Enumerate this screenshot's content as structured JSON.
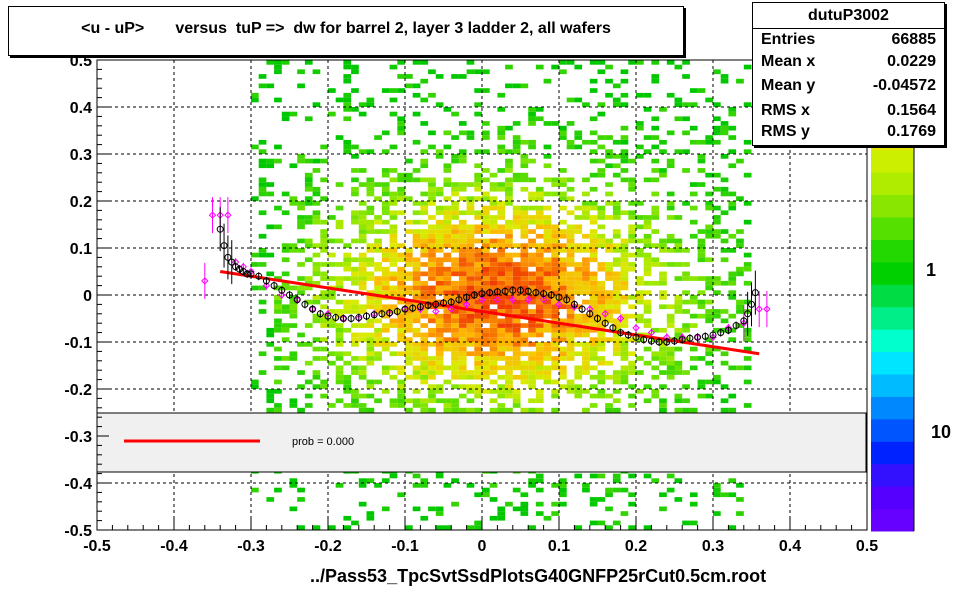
{
  "title": "<u - uP>       versus  tuP =>  dw for barrel 2, layer 3 ladder 2, all wafers",
  "footer": "../Pass53_TpcSvtSsdPlotsG40GNFP25rCut0.5cm.root",
  "stats": {
    "name": "dutuP3002",
    "rows": [
      {
        "label": "Entries",
        "value": "66885"
      },
      {
        "label": "Mean x",
        "value": "0.0229"
      },
      {
        "label": "Mean y",
        "value": "-0.04572"
      },
      {
        "label": "RMS x",
        "value": "0.1564"
      },
      {
        "label": "RMS y",
        "value": "0.1769"
      }
    ]
  },
  "legend": {
    "fit_label": "prob = 0.000"
  },
  "colors": {
    "fit_line": "#ff0000",
    "profile_black": "#000000",
    "profile_magenta": "#ff00ff",
    "legend_bg": "#f0f0f0"
  },
  "chart_data": {
    "type": "heatmap",
    "xlim": [
      -0.5,
      0.5
    ],
    "ylim": [
      -0.5,
      0.5
    ],
    "x_ticks": [
      "-0.5",
      "-0.4",
      "-0.3",
      "-0.2",
      "-0.1",
      "0",
      "0.1",
      "0.2",
      "0.3",
      "0.4",
      "0.5"
    ],
    "y_ticks": [
      "-0.5",
      "-0.4",
      "-0.3",
      "-0.2",
      "-0.1",
      "0",
      "0.1",
      "0.2",
      "0.3",
      "0.4",
      "0.5"
    ],
    "colorbar_labels": [
      "1",
      "10"
    ],
    "grid": true,
    "fit_line": {
      "x": [
        -0.34,
        0.36
      ],
      "y": [
        0.05,
        -0.125
      ]
    },
    "profile_black": {
      "x": [
        -0.34,
        -0.335,
        -0.33,
        -0.325,
        -0.32,
        -0.315,
        -0.31,
        -0.305,
        -0.3,
        -0.29,
        -0.28,
        -0.27,
        -0.26,
        -0.25,
        -0.24,
        -0.23,
        -0.22,
        -0.21,
        -0.2,
        -0.19,
        -0.18,
        -0.17,
        -0.16,
        -0.15,
        -0.14,
        -0.13,
        -0.12,
        -0.11,
        -0.1,
        -0.09,
        -0.08,
        -0.07,
        -0.06,
        -0.05,
        -0.04,
        -0.03,
        -0.02,
        -0.01,
        0.0,
        0.01,
        0.02,
        0.03,
        0.04,
        0.05,
        0.06,
        0.07,
        0.08,
        0.09,
        0.1,
        0.11,
        0.12,
        0.13,
        0.14,
        0.15,
        0.16,
        0.17,
        0.18,
        0.19,
        0.2,
        0.21,
        0.22,
        0.23,
        0.24,
        0.25,
        0.26,
        0.27,
        0.28,
        0.29,
        0.3,
        0.31,
        0.32,
        0.33,
        0.34,
        0.345,
        0.35,
        0.355
      ],
      "y": [
        0.14,
        0.105,
        0.08,
        0.07,
        0.06,
        0.055,
        0.05,
        0.045,
        0.045,
        0.04,
        0.03,
        0.02,
        0.01,
        0.0,
        -0.01,
        -0.02,
        -0.03,
        -0.04,
        -0.045,
        -0.048,
        -0.05,
        -0.05,
        -0.048,
        -0.045,
        -0.042,
        -0.04,
        -0.038,
        -0.035,
        -0.03,
        -0.028,
        -0.025,
        -0.022,
        -0.02,
        -0.017,
        -0.015,
        -0.01,
        -0.005,
        0.0,
        0.003,
        0.005,
        0.007,
        0.008,
        0.01,
        0.01,
        0.008,
        0.005,
        0.003,
        0.0,
        -0.005,
        -0.01,
        -0.02,
        -0.03,
        -0.04,
        -0.05,
        -0.06,
        -0.07,
        -0.08,
        -0.085,
        -0.09,
        -0.095,
        -0.098,
        -0.1,
        -0.1,
        -0.098,
        -0.095,
        -0.092,
        -0.09,
        -0.088,
        -0.085,
        -0.08,
        -0.075,
        -0.065,
        -0.055,
        -0.04,
        -0.02,
        0.005
      ]
    },
    "profile_magenta": {
      "x": [
        -0.36,
        -0.35,
        -0.34,
        -0.33,
        -0.32,
        -0.31,
        -0.3,
        -0.28,
        -0.26,
        -0.24,
        -0.22,
        -0.2,
        -0.18,
        -0.16,
        -0.14,
        -0.12,
        -0.1,
        -0.08,
        -0.06,
        -0.04,
        -0.02,
        0.0,
        0.02,
        0.04,
        0.06,
        0.08,
        0.1,
        0.12,
        0.14,
        0.16,
        0.18,
        0.2,
        0.22,
        0.24,
        0.26,
        0.28,
        0.3,
        0.32,
        0.34,
        0.36,
        0.37
      ],
      "y": [
        0.03,
        0.17,
        0.17,
        0.17,
        0.07,
        0.06,
        0.05,
        0.02,
        0.0,
        -0.01,
        -0.03,
        -0.04,
        -0.05,
        -0.05,
        -0.04,
        -0.04,
        -0.03,
        -0.03,
        -0.035,
        -0.03,
        -0.02,
        -0.01,
        -0.01,
        -0.01,
        -0.01,
        -0.01,
        -0.02,
        -0.025,
        -0.03,
        -0.04,
        -0.05,
        -0.07,
        -0.08,
        -0.09,
        -0.09,
        -0.09,
        -0.09,
        -0.07,
        -0.06,
        -0.03,
        -0.03
      ]
    }
  }
}
